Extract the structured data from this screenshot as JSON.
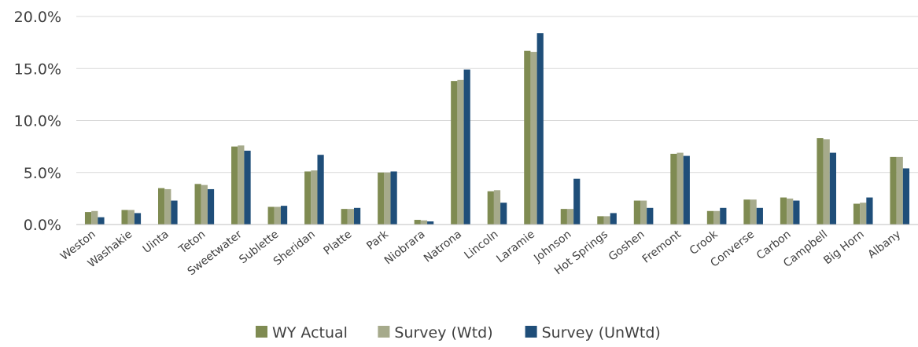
{
  "chart_data": {
    "type": "bar",
    "title": "",
    "xlabel": "",
    "ylabel": "",
    "ylim": [
      0,
      20
    ],
    "y_ticks": [
      "0.0%",
      "5.0%",
      "10.0%",
      "15.0%",
      "20.0%"
    ],
    "y_tick_values": [
      0,
      5,
      10,
      15,
      20
    ],
    "grid": true,
    "legend_position": "bottom",
    "categories": [
      "Weston",
      "Washakie",
      "Uinta",
      "Teton",
      "Sweetwater",
      "Sublette",
      "Sheridan",
      "Platte",
      "Park",
      "Niobrara",
      "Natrona",
      "Lincoln",
      "Laramie",
      "Johnson",
      "Hot Springs",
      "Goshen",
      "Fremont",
      "Crook",
      "Converse",
      "Carbon",
      "Campbell",
      "Big Horn",
      "Albany"
    ],
    "series": [
      {
        "name": "WY Actual",
        "color": "#7f8b52",
        "values": [
          1.2,
          1.4,
          3.5,
          3.9,
          7.5,
          1.7,
          5.1,
          1.5,
          5.0,
          0.45,
          13.8,
          3.2,
          16.7,
          1.5,
          0.8,
          2.3,
          6.8,
          1.3,
          2.4,
          2.6,
          8.3,
          2.0,
          6.5
        ]
      },
      {
        "name": "Survey (Wtd)",
        "color": "#a6aa8b",
        "values": [
          1.3,
          1.4,
          3.4,
          3.8,
          7.6,
          1.7,
          5.2,
          1.5,
          5.0,
          0.4,
          13.9,
          3.3,
          16.6,
          1.5,
          0.8,
          2.3,
          6.9,
          1.3,
          2.4,
          2.5,
          8.2,
          2.1,
          6.5
        ]
      },
      {
        "name": "Survey (UnWtd)",
        "color": "#1f4e79",
        "values": [
          0.7,
          1.1,
          2.3,
          3.4,
          7.1,
          1.8,
          6.7,
          1.6,
          5.1,
          0.3,
          14.9,
          2.1,
          18.4,
          4.4,
          1.1,
          1.6,
          6.6,
          1.6,
          1.6,
          2.3,
          6.9,
          2.6,
          5.4
        ]
      }
    ]
  }
}
